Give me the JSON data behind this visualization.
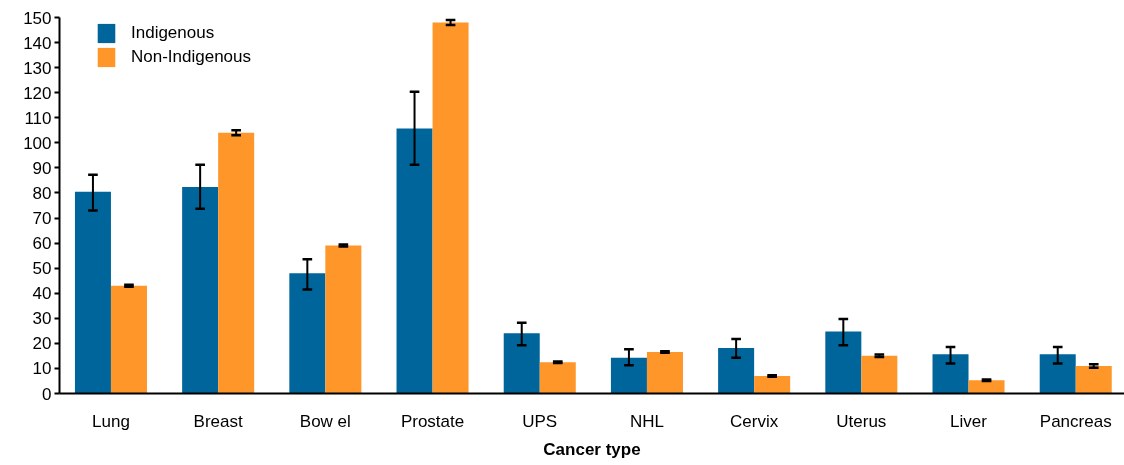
{
  "chart_data": {
    "type": "bar",
    "xlabel": "Cancer type",
    "categories": [
      "Lung",
      "Breast",
      "Bow el",
      "Prostate",
      "UPS",
      "NHL",
      "Cervix",
      "Uterus",
      "Liver",
      "Pancreas"
    ],
    "series": [
      {
        "name": "Indigenous",
        "color": "#00659a",
        "values": [
          80.5,
          82.4,
          48,
          105.7,
          24,
          14.3,
          18.2,
          24.7,
          15.7,
          15.7
        ],
        "errors": [
          [
            73,
            87.3
          ],
          [
            73.7,
            91.3
          ],
          [
            41.5,
            53.6
          ],
          [
            91.3,
            120.4
          ],
          [
            19.2,
            28.2
          ],
          [
            11.3,
            17.7
          ],
          [
            14.3,
            21.7
          ],
          [
            19.2,
            29.7
          ],
          [
            12,
            18.6
          ],
          [
            12,
            18.6
          ]
        ]
      },
      {
        "name": "Non-Indigenous",
        "color": "#fe962a",
        "values": [
          43,
          104,
          59,
          148,
          12.5,
          16.6,
          7,
          15.1,
          5.3,
          11
        ],
        "errors": [
          0.4,
          1,
          0.4,
          1,
          0.3,
          0.3,
          0.3,
          0.5,
          0.3,
          0.7
        ]
      }
    ],
    "ylim": [
      0,
      150
    ],
    "yticks": [
      0,
      10,
      20,
      30,
      40,
      50,
      60,
      70,
      80,
      90,
      100,
      110,
      120,
      130,
      140,
      150
    ],
    "legend": "top left"
  }
}
